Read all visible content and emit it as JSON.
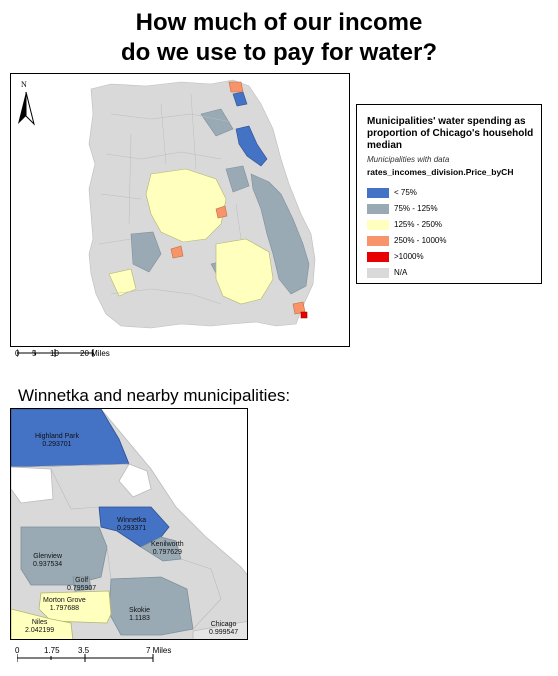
{
  "title": {
    "line1": "How much of our income",
    "line2": "do we use to pay for water?"
  },
  "north_arrow": {
    "label": "N"
  },
  "legend": {
    "title": "Municipalities' water spending as proportion of Chicago's household median",
    "subtitle": "Municipalities with data",
    "field": "rates_incomes_division.Price_byCH",
    "items": [
      {
        "label": "< 75%",
        "color": "#4472c4"
      },
      {
        "label": "75% - 125%",
        "color": "#9aaab5"
      },
      {
        "label": "125% - 250%",
        "color": "#ffffbe"
      },
      {
        "label": "250% - 1000%",
        "color": "#f7946a"
      },
      {
        "label": ">1000%",
        "color": "#e80000"
      },
      {
        "label": "N/A",
        "color": "#d9d9d9"
      }
    ]
  },
  "scale_main": {
    "t0": "0",
    "t1": "5",
    "t2": "10",
    "t3": "20 Miles"
  },
  "inset_heading": "Winnetka and nearby municipalities:",
  "inset_labels": [
    {
      "name": "Highland Park",
      "value": "0.293701"
    },
    {
      "name": "Winnetka",
      "value": "0.293371"
    },
    {
      "name": "Kenilworth",
      "value": "0.797629"
    },
    {
      "name": "Glenview",
      "value": "0.937534"
    },
    {
      "name": "Golf",
      "value": "0.795907"
    },
    {
      "name": "Morton Grove",
      "value": "1.797688"
    },
    {
      "name": "Niles",
      "value": "2.042199"
    },
    {
      "name": "Skokie",
      "value": "1.1183"
    },
    {
      "name": "Chicago",
      "value": "0.999547"
    }
  ],
  "scale_inset": {
    "t0": "0",
    "t1": "1.75",
    "t2": "3.5",
    "t3": "7 Miles"
  }
}
